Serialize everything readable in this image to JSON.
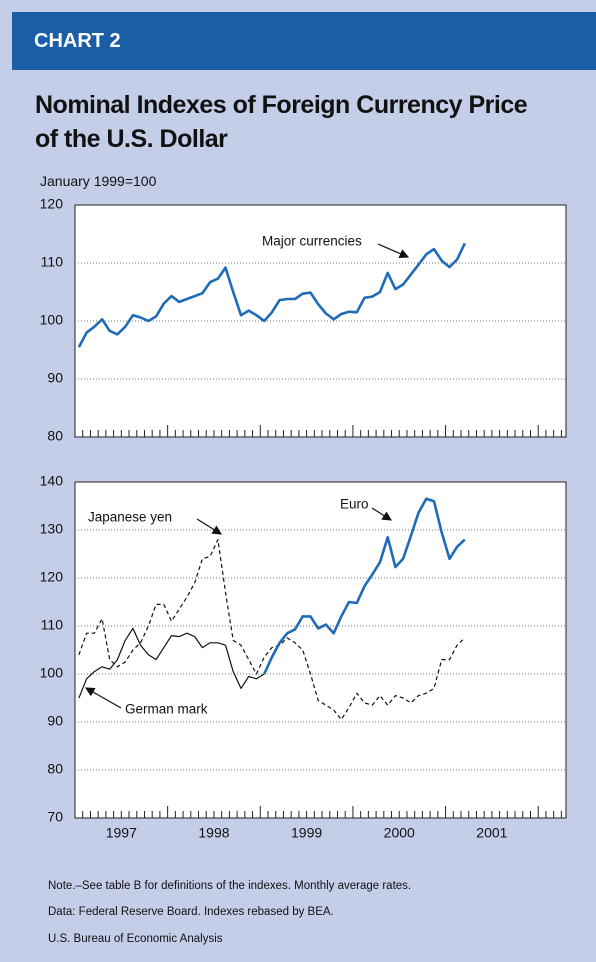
{
  "header": {
    "label": "CHART 2"
  },
  "title": "Nominal Indexes of Foreign Currency Price of the U.S. Dollar",
  "subtitle": "January 1999=100",
  "chart_data": [
    {
      "type": "line",
      "annotations": [
        "Major currencies"
      ],
      "xlim": [
        1997,
        2002.3
      ],
      "ylim": [
        80,
        120
      ],
      "yticks": [
        80,
        90,
        100,
        110,
        120
      ],
      "grid": true,
      "x": [
        1997.042,
        1997.125,
        1997.208,
        1997.292,
        1997.375,
        1997.458,
        1997.542,
        1997.625,
        1997.708,
        1997.792,
        1997.875,
        1997.958,
        1998.042,
        1998.125,
        1998.208,
        1998.292,
        1998.375,
        1998.458,
        1998.542,
        1998.625,
        1998.708,
        1998.792,
        1998.875,
        1998.958,
        1999.042,
        1999.125,
        1999.208,
        1999.292,
        1999.375,
        1999.458,
        1999.542,
        1999.625,
        1999.708,
        1999.792,
        1999.875,
        1999.958,
        2000.042,
        2000.125,
        2000.208,
        2000.292,
        2000.375,
        2000.458,
        2000.542,
        2000.625,
        2000.708,
        2000.792,
        2000.875,
        2000.958,
        2001.042,
        2001.125,
        2001.208
      ],
      "series": [
        {
          "name": "Major currencies",
          "color": "#1f6bb8",
          "style": "solid",
          "values": [
            95.5,
            98,
            99,
            100.3,
            98.3,
            97.7,
            99,
            101,
            100.6,
            100,
            100.8,
            103,
            104.3,
            103.3,
            103.8,
            104.3,
            104.8,
            106.7,
            107.3,
            109.2,
            105,
            101,
            101.8,
            101,
            100,
            101.5,
            103.6,
            103.8,
            103.8,
            104.7,
            104.9,
            102.9,
            101.3,
            100.3,
            101.2,
            101.6,
            101.5,
            104,
            104.2,
            105,
            108.3,
            105.5,
            106.3,
            108,
            109.7,
            111.5,
            112.4,
            110.4,
            109.3,
            110.6,
            113.4
          ]
        }
      ]
    },
    {
      "type": "line",
      "annotations": [
        "Euro",
        "Japanese yen",
        "German mark"
      ],
      "xlim": [
        1997,
        2002.3
      ],
      "ylim": [
        70,
        140
      ],
      "yticks": [
        70,
        80,
        90,
        100,
        110,
        120,
        130,
        140
      ],
      "grid": true,
      "xticks": [
        {
          "value": 1997.5,
          "label": "1997"
        },
        {
          "value": 1998.5,
          "label": "1998"
        },
        {
          "value": 1999.5,
          "label": "1999"
        },
        {
          "value": 2000.5,
          "label": "2000"
        },
        {
          "value": 2001.5,
          "label": "2001"
        }
      ],
      "x": [
        1997.042,
        1997.125,
        1997.208,
        1997.292,
        1997.375,
        1997.458,
        1997.542,
        1997.625,
        1997.708,
        1997.792,
        1997.875,
        1997.958,
        1998.042,
        1998.125,
        1998.208,
        1998.292,
        1998.375,
        1998.458,
        1998.542,
        1998.625,
        1998.708,
        1998.792,
        1998.875,
        1998.958,
        1999.042,
        1999.125,
        1999.208,
        1999.292,
        1999.375,
        1999.458,
        1999.542,
        1999.625,
        1999.708,
        1999.792,
        1999.875,
        1999.958,
        2000.042,
        2000.125,
        2000.208,
        2000.292,
        2000.375,
        2000.458,
        2000.542,
        2000.625,
        2000.708,
        2000.792,
        2000.875,
        2000.958,
        2001.042,
        2001.125,
        2001.208
      ],
      "series": [
        {
          "name": "Japanese yen",
          "color": "#111111",
          "style": "dashed",
          "values": [
            104,
            108.5,
            108.5,
            111.5,
            103,
            101.5,
            102.5,
            105,
            106.5,
            110,
            114.5,
            114.5,
            111,
            113.5,
            116,
            119,
            124,
            124.5,
            128,
            117,
            107,
            106,
            103,
            100,
            103.5,
            105.5,
            106,
            107.5,
            106.5,
            105,
            100,
            94.5,
            93.5,
            92.5,
            90.5,
            93,
            96,
            94,
            93.5,
            95.5,
            93.5,
            95.5,
            95,
            94,
            95.5,
            96,
            97,
            103,
            103,
            106,
            107.5
          ]
        },
        {
          "name": "German mark",
          "color": "#111111",
          "style": "solid",
          "values": [
            95,
            99,
            100.5,
            101.5,
            101,
            103,
            107,
            109.5,
            106,
            104,
            103,
            105.5,
            108,
            107.8,
            108.5,
            107.8,
            105.5,
            106.5,
            106.5,
            106,
            100.5,
            97,
            99.5,
            99,
            100,
            null,
            null,
            null,
            null,
            null,
            null,
            null,
            null,
            null,
            null,
            null,
            null,
            null,
            null,
            null,
            null,
            null,
            null,
            null,
            null,
            null,
            null,
            null,
            null,
            null,
            null
          ]
        },
        {
          "name": "Euro",
          "color": "#1f6bb8",
          "style": "thick",
          "values": [
            null,
            null,
            null,
            null,
            null,
            null,
            null,
            null,
            null,
            null,
            null,
            null,
            null,
            null,
            null,
            null,
            null,
            null,
            null,
            null,
            null,
            null,
            null,
            null,
            100,
            103.5,
            106.5,
            108.5,
            109.3,
            112,
            112,
            109.5,
            110.3,
            108.5,
            112,
            115,
            114.8,
            118.3,
            120.7,
            123.3,
            128.5,
            122.3,
            124,
            128.7,
            133.6,
            136.5,
            136,
            129.5,
            124,
            126.5,
            128
          ]
        }
      ]
    }
  ],
  "notes": [
    "Note.–See table B for definitions of the indexes. Monthly average rates.",
    "Data: Federal Reserve Board. Indexes rebased by BEA."
  ],
  "source": "U.S. Bureau of Economic Analysis"
}
